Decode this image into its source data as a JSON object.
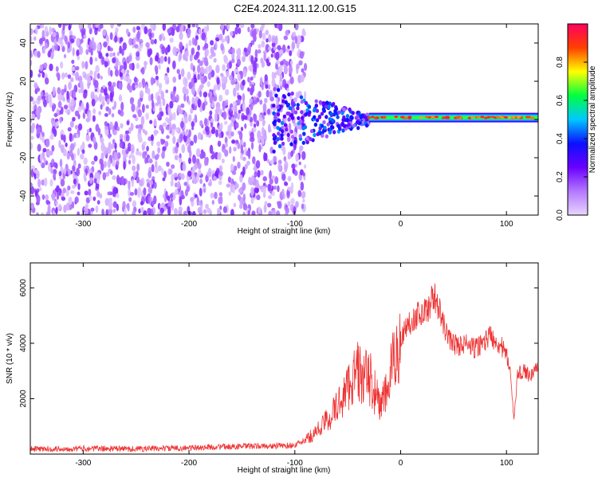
{
  "page": {
    "title": "C2E4.2024.311.12.00.G15"
  },
  "chart_data": [
    {
      "type": "heatmap",
      "title": "",
      "xlabel": "Height of straight line (km)",
      "ylabel": "Frequency (Hz)",
      "xlim": [
        -350,
        130
      ],
      "ylim": [
        -50,
        50
      ],
      "xticks": [
        -300,
        -200,
        -100,
        0,
        100
      ],
      "yticks": [
        -40,
        -20,
        0,
        20,
        40
      ],
      "grid": false,
      "colorbar": {
        "label": "Normalized spectral amplitude",
        "range": [
          0,
          1
        ],
        "ticks": [
          0.0,
          0.2,
          0.4,
          0.6,
          0.8
        ],
        "colors": [
          "#e8d6ff",
          "#b478ff",
          "#6a00ff",
          "#0b10ff",
          "#00c8ff",
          "#00ff40",
          "#ffff00",
          "#ff4000",
          "#ff0060"
        ]
      },
      "features": [
        {
          "x_range": [
            -350,
            -100
          ],
          "y_range": [
            -50,
            50
          ],
          "amplitude": 0.15
        },
        {
          "x_range": [
            -120,
            -30
          ],
          "y_center": 0,
          "amplitude": 0.4
        },
        {
          "x_range": [
            -30,
            130
          ],
          "y_center": 1,
          "amplitude": 0.95
        }
      ]
    },
    {
      "type": "line",
      "title": "",
      "xlabel": "Height of straight line (km)",
      "ylabel": "SNR (10 * v/v)",
      "xlim": [
        -350,
        130
      ],
      "ylim": [
        0,
        6900
      ],
      "xticks": [
        -300,
        -200,
        -100,
        0,
        100
      ],
      "yticks": [
        2000,
        4000,
        6000
      ],
      "grid": false,
      "series_color": "#ee3333",
      "series": [
        {
          "x": [
            -350,
            -300,
            -250,
            -200,
            -180,
            -150,
            -120,
            -100,
            -90,
            -80,
            -70,
            -60,
            -50,
            -45,
            -40,
            -35,
            -30,
            -25,
            -20,
            -15,
            -10,
            -5,
            0,
            5,
            10,
            15,
            20,
            25,
            30,
            32,
            35,
            40,
            45,
            50,
            55,
            60,
            70,
            80,
            85,
            90,
            95,
            100,
            103,
            105,
            107,
            110,
            115,
            120,
            125,
            130
          ],
          "y": [
            180,
            200,
            190,
            220,
            250,
            280,
            290,
            320,
            500,
            800,
            1200,
            1700,
            2400,
            2800,
            3000,
            2700,
            2800,
            2300,
            1800,
            2000,
            2800,
            3600,
            4100,
            4600,
            4800,
            5000,
            5100,
            5200,
            5600,
            5700,
            5400,
            4700,
            4200,
            4000,
            3900,
            4000,
            3800,
            4100,
            4300,
            4100,
            3900,
            3500,
            3300,
            2200,
            1200,
            2800,
            3000,
            2900,
            2900,
            3200
          ]
        }
      ]
    }
  ]
}
